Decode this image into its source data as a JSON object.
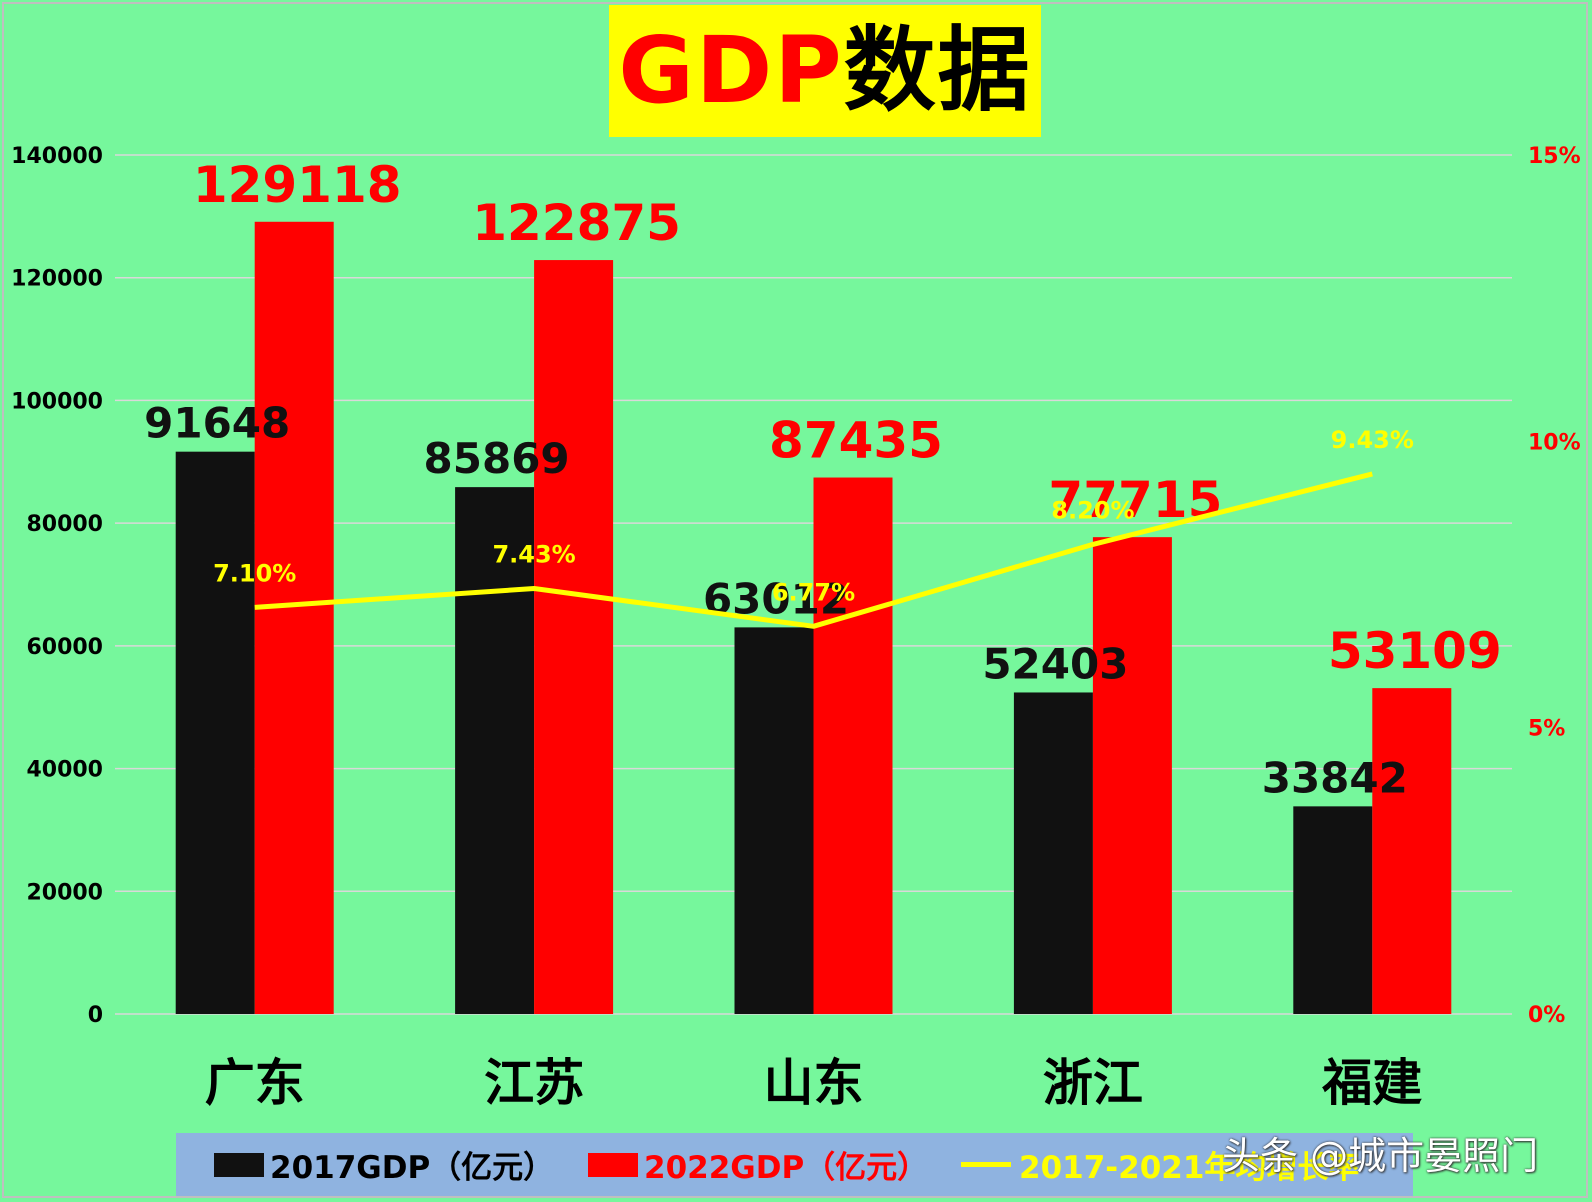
{
  "title": {
    "part1": "GDP",
    "part2": "数据"
  },
  "colors": {
    "background": "#76f79c",
    "series2017": "#111111",
    "series2022": "#ff0000",
    "growth": "#ffff00",
    "right_axis": "#ff0000",
    "legend_bg": "#8fb3e0",
    "title_bg": "#ffff00"
  },
  "legend": {
    "s2017": "2017GDP（亿元）",
    "s2022": "2022GDP（亿元）",
    "growth": "2017-2021年均增长率"
  },
  "watermark": "头条 @城市晏照门",
  "chart_data": {
    "type": "bar",
    "categories": [
      "广东",
      "江苏",
      "山东",
      "浙江",
      "福建"
    ],
    "series": [
      {
        "name": "2017GDP（亿元）",
        "type": "bar",
        "axis": "left",
        "values": [
          91648,
          85869,
          63012,
          52403,
          33842
        ],
        "labels": [
          "91648",
          "85869",
          "63012",
          "52403",
          "33842"
        ]
      },
      {
        "name": "2022GDP（亿元）",
        "type": "bar",
        "axis": "left",
        "values": [
          129118,
          122875,
          87435,
          77715,
          53109
        ],
        "labels": [
          "129118",
          "122875",
          "87435",
          "77715",
          "53109"
        ]
      },
      {
        "name": "2017-2021年均增长率",
        "type": "line",
        "axis": "right",
        "values": [
          7.1,
          7.43,
          6.77,
          8.2,
          9.43
        ],
        "labels": [
          "7.10%",
          "7.43%",
          "6.77%",
          "8.20%",
          "9.43%"
        ]
      }
    ],
    "y_left": {
      "range": [
        0,
        140000
      ],
      "ticks": [
        "0",
        "20000",
        "40000",
        "60000",
        "80000",
        "100000",
        "120000",
        "140000"
      ]
    },
    "y_right": {
      "range": [
        0,
        15
      ],
      "ticks": [
        "0%",
        "5%",
        "10%",
        "15%"
      ],
      "tick_values": [
        0,
        5,
        10,
        15
      ]
    },
    "grid": true,
    "legend_position": "bottom"
  }
}
